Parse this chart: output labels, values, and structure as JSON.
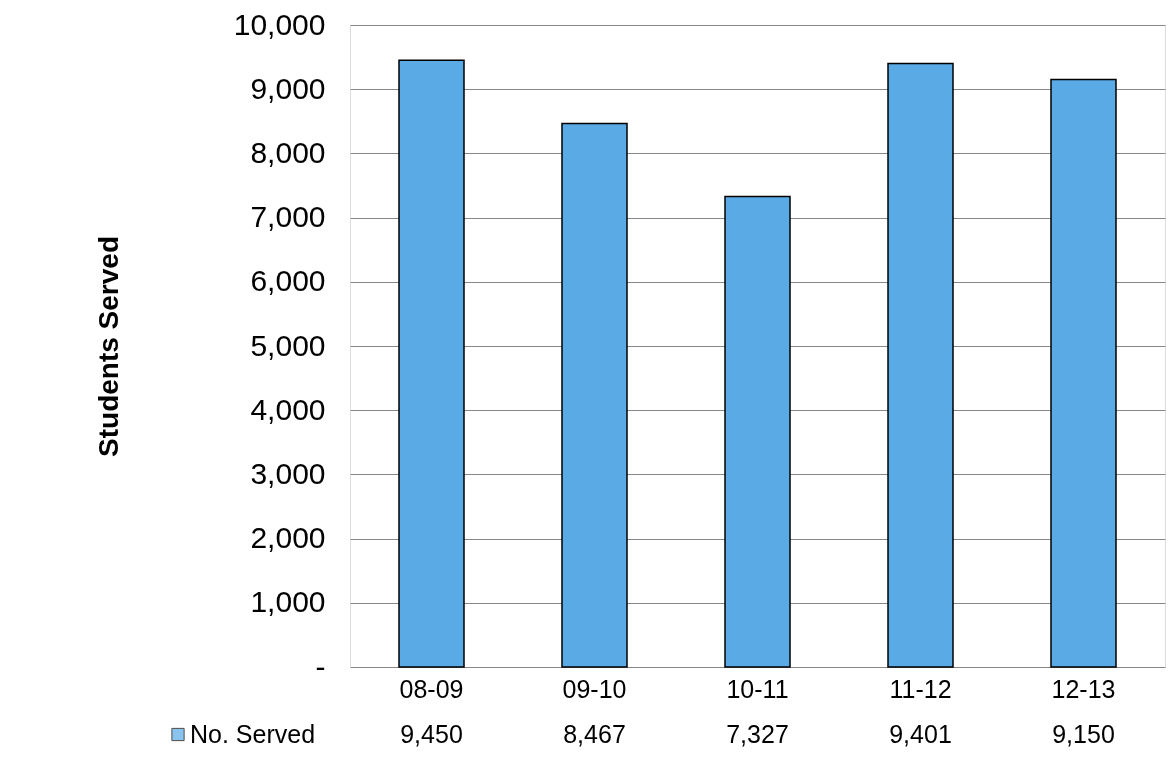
{
  "chart_data": {
    "type": "bar",
    "ylabel": "Students Served",
    "categories": [
      "08-09",
      "09-10",
      "10-11",
      "11-12",
      "12-13"
    ],
    "series": [
      {
        "name": "No. Served",
        "color": "#5aaae6",
        "values": [
          9450,
          8467,
          7327,
          9401,
          9150
        ],
        "value_labels": [
          "9,450",
          "8,467",
          "7,327",
          "9,401",
          "9,150"
        ]
      }
    ],
    "ylim": [
      0,
      10000
    ],
    "yticks": [
      {
        "value": 0,
        "label": "-"
      },
      {
        "value": 1000,
        "label": "1,000"
      },
      {
        "value": 2000,
        "label": "2,000"
      },
      {
        "value": 3000,
        "label": "3,000"
      },
      {
        "value": 4000,
        "label": "4,000"
      },
      {
        "value": 5000,
        "label": "5,000"
      },
      {
        "value": 6000,
        "label": "6,000"
      },
      {
        "value": 7000,
        "label": "7,000"
      },
      {
        "value": 8000,
        "label": "8,000"
      },
      {
        "value": 9000,
        "label": "9,000"
      },
      {
        "value": 10000,
        "label": "10,000"
      }
    ],
    "grid": "y",
    "legend": "bottom"
  }
}
